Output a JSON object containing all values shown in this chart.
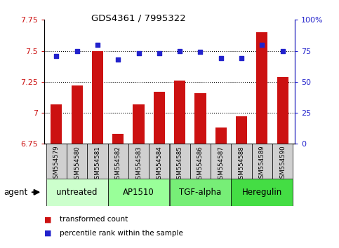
{
  "title": "GDS4361 / 7995322",
  "samples": [
    "GSM554579",
    "GSM554580",
    "GSM554581",
    "GSM554582",
    "GSM554583",
    "GSM554584",
    "GSM554585",
    "GSM554586",
    "GSM554587",
    "GSM554588",
    "GSM554589",
    "GSM554590"
  ],
  "red_values": [
    7.07,
    7.22,
    7.5,
    6.83,
    7.07,
    7.17,
    7.26,
    7.16,
    6.88,
    6.97,
    7.65,
    7.29
  ],
  "blue_values": [
    71,
    75,
    80,
    68,
    73,
    73,
    75,
    74,
    69,
    69,
    80,
    75
  ],
  "ymin": 6.75,
  "ymax": 7.75,
  "ylim_right": [
    0,
    100
  ],
  "yticks_left": [
    6.75,
    7.0,
    7.25,
    7.5,
    7.75
  ],
  "yticks_right": [
    0,
    25,
    50,
    75,
    100
  ],
  "ytick_labels_left": [
    "6.75",
    "7",
    "7.25",
    "7.5",
    "7.75"
  ],
  "ytick_labels_right": [
    "0",
    "25",
    "50",
    "75",
    "100%"
  ],
  "hlines": [
    7.0,
    7.25,
    7.5
  ],
  "groups": [
    {
      "label": "untreated",
      "indices": [
        0,
        1,
        2
      ],
      "color": "#ccffcc"
    },
    {
      "label": "AP1510",
      "indices": [
        3,
        4,
        5
      ],
      "color": "#99ff99"
    },
    {
      "label": "TGF-alpha",
      "indices": [
        6,
        7,
        8
      ],
      "color": "#77ee77"
    },
    {
      "label": "Heregulin",
      "indices": [
        9,
        10,
        11
      ],
      "color": "#44dd44"
    }
  ],
  "bar_color": "#cc1111",
  "dot_color": "#2222cc",
  "bar_width": 0.55,
  "background_color": "#ffffff",
  "agent_label": "agent",
  "legend_items": [
    {
      "label": "transformed count",
      "color": "#cc1111"
    },
    {
      "label": "percentile rank within the sample",
      "color": "#2222cc"
    }
  ]
}
